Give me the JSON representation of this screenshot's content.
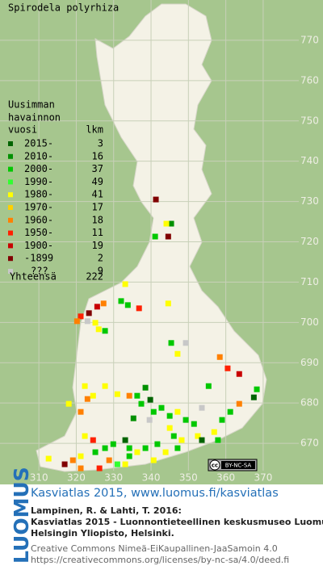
{
  "title": "Spirodela polyrhiza",
  "map": {
    "xlim": [
      299.6,
      386
    ],
    "ylim": [
      659.8,
      780
    ],
    "xticks": [
      310,
      320,
      330,
      340,
      350,
      360,
      370
    ],
    "yticks": [
      670,
      680,
      690,
      700,
      710,
      720,
      730,
      740,
      750,
      760,
      770
    ]
  },
  "legend": {
    "heading": [
      "Uusimman",
      "havainnon",
      "vuosi"
    ],
    "count_header": "lkm",
    "items": [
      {
        "label": "2015-",
        "count": 3,
        "color": "#006400"
      },
      {
        "label": "2010-",
        "count": 16,
        "color": "#009000"
      },
      {
        "label": "2000-",
        "count": 37,
        "color": "#00c800"
      },
      {
        "label": "1990-",
        "count": 49,
        "color": "#30ff30"
      },
      {
        "label": "1980-",
        "count": 41,
        "color": "#ffff00"
      },
      {
        "label": "1970-",
        "count": 17,
        "color": "#ffd000"
      },
      {
        "label": "1960-",
        "count": 18,
        "color": "#ff8000"
      },
      {
        "label": "1950-",
        "count": 11,
        "color": "#ff2000"
      },
      {
        "label": "1900-",
        "count": 19,
        "color": "#c80000"
      },
      {
        "label": "-1899",
        "count": 2,
        "color": "#800000"
      },
      {
        "label": "???",
        "count": 9,
        "color": "#c8c8c8"
      }
    ],
    "total_label": "Yhteensä",
    "total": 222
  },
  "dots": {
    "x": [
      341.3,
      345.4,
      344.1,
      341.1,
      344.6,
      333.1,
      333.8,
      336.8,
      332.0,
      325.6,
      327.3,
      323.4,
      321.2,
      320.2,
      323.0,
      325.1,
      326.0,
      327.7,
      344.6,
      345.4,
      347.1,
      349.3,
      358.4,
      360.5,
      363.6,
      355.4,
      368.3,
      367.5,
      363.6,
      353.6,
      322.3,
      323.0,
      324.5,
      327.7,
      331.0,
      334.2,
      336.3,
      338.5,
      339.8,
      337.4,
      340.7,
      342.8,
      345.0,
      347.1,
      349.3,
      351.5,
      335.3,
      339.6,
      345.0,
      346.1,
      348.2,
      352.5,
      356.9,
      359.0,
      361.2,
      322.3,
      324.5,
      325.1,
      327.7,
      329.9,
      333.1,
      334.2,
      336.3,
      338.5,
      341.7,
      343.9,
      347.1,
      334.2,
      328.8,
      321.2,
      319.1,
      312.6,
      316.9,
      321.2,
      326.2,
      333.1,
      331.0,
      340.7,
      318.0,
      321.2,
      357.9,
      353.6
    ],
    "y": [
      730.5,
      724.5,
      724.5,
      721.3,
      721.3,
      709.5,
      704.3,
      703.5,
      705.3,
      703.9,
      704.7,
      702.3,
      701.5,
      700.3,
      700.3,
      699.9,
      698.3,
      697.9,
      704.7,
      694.9,
      692.2,
      694.9,
      691.4,
      688.6,
      687.2,
      684.2,
      683.4,
      681.4,
      679.8,
      678.8,
      684.2,
      681.0,
      681.8,
      684.2,
      682.2,
      681.8,
      681.8,
      683.8,
      680.8,
      679.8,
      677.8,
      678.8,
      676.8,
      677.8,
      675.8,
      674.8,
      676.2,
      675.8,
      673.8,
      671.8,
      670.8,
      671.8,
      672.8,
      675.8,
      677.8,
      671.8,
      670.8,
      667.8,
      668.8,
      669.8,
      670.8,
      668.8,
      667.8,
      668.8,
      669.8,
      667.8,
      668.8,
      666.8,
      665.8,
      666.8,
      665.8,
      666.2,
      664.8,
      663.8,
      663.8,
      664.8,
      664.8,
      665.8,
      679.8,
      677.8,
      670.8,
      670.8
    ],
    "class": [
      9,
      1,
      4,
      2,
      9,
      4,
      2,
      7,
      2,
      8,
      6,
      9,
      7,
      6,
      10,
      4,
      4,
      2,
      4,
      2,
      4,
      10,
      6,
      7,
      8,
      2,
      2,
      0,
      6,
      10,
      4,
      6,
      4,
      4,
      4,
      6,
      2,
      1,
      0,
      2,
      2,
      2,
      2,
      4,
      2,
      2,
      1,
      10,
      4,
      2,
      4,
      4,
      4,
      2,
      2,
      4,
      7,
      2,
      2,
      2,
      0,
      2,
      4,
      2,
      2,
      4,
      2,
      2,
      6,
      4,
      6,
      4,
      9,
      6,
      7,
      4,
      3,
      4,
      4,
      6,
      2,
      0
    ]
  },
  "license_badge": {
    "icon": "cc",
    "text": "BY-NC-SA"
  },
  "footer": {
    "logo": "LUOMUS",
    "headline": "Kasviatlas 2015, www.luomus.fi/kasviatlas",
    "citation": [
      "Lampinen, R. & Lahti, T. 2016:",
      "Kasviatlas 2015 - Luonnontieteellinen keskusmuseo Luomus,",
      "Helsingin Yliopisto, Helsinki."
    ],
    "license": [
      "Creative Commons Nimeä-EiKaupallinen-JaaSamoin 4.0",
      "https://creativecommons.org/licenses/by-nc-sa/4.0/deed.fi"
    ]
  }
}
